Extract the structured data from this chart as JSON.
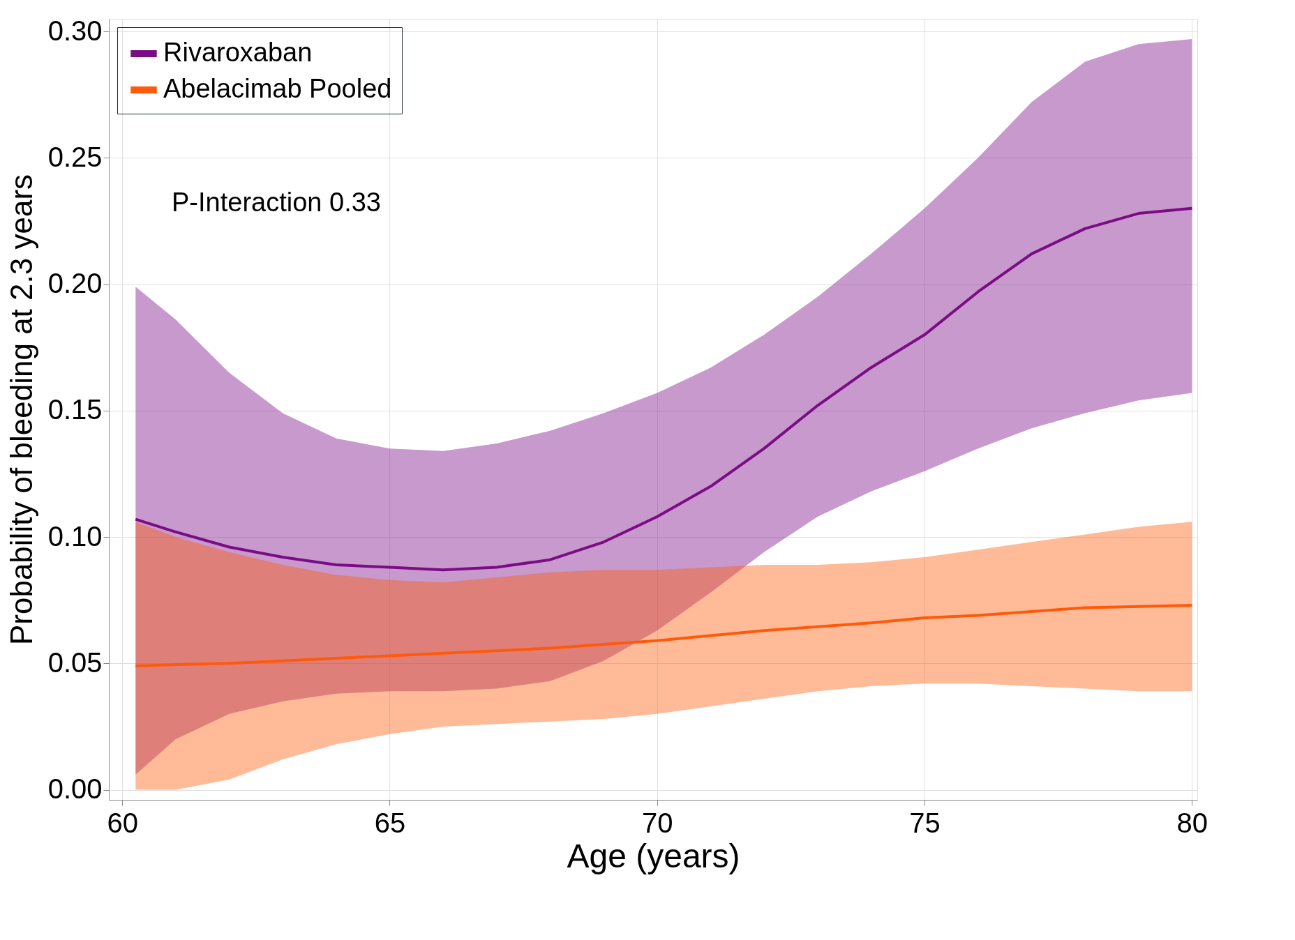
{
  "chart_data": {
    "type": "line",
    "xlabel": "Age (years)",
    "ylabel": "Probability of bleeding at 2.3 years",
    "annotations": [
      "P-Interaction 0.33"
    ],
    "x": [
      60.25,
      61,
      62,
      63,
      64,
      65,
      66,
      67,
      68,
      69,
      70,
      71,
      72,
      73,
      74,
      75,
      76,
      77,
      78,
      79,
      80
    ],
    "xlim": [
      59.75,
      80.1
    ],
    "xticks": [
      60,
      65,
      70,
      75,
      80
    ],
    "ylim": [
      -0.004,
      0.305
    ],
    "yticks": [
      {
        "value": 0,
        "label": "0.00"
      },
      {
        "value": 0.05,
        "label": "0.05"
      },
      {
        "value": 0.1,
        "label": "0.10"
      },
      {
        "value": 0.15,
        "label": "0.15"
      },
      {
        "value": 0.2,
        "label": "0.20"
      },
      {
        "value": 0.25,
        "label": "0.25"
      },
      {
        "value": 0.3,
        "label": "0.30"
      }
    ],
    "grid": true,
    "legend": "top left",
    "line_style": "solid",
    "marker": "none",
    "series": [
      {
        "name": "Rivaroxaban",
        "color": "#7b0c85",
        "values": [
          0.107,
          0.102,
          0.096,
          0.092,
          0.089,
          0.088,
          0.087,
          0.088,
          0.091,
          0.098,
          0.108,
          0.12,
          0.135,
          0.152,
          0.167,
          0.18,
          0.197,
          0.212,
          0.222,
          0.228,
          0.23
        ],
        "upper": [
          0.199,
          0.186,
          0.165,
          0.149,
          0.139,
          0.135,
          0.134,
          0.137,
          0.142,
          0.149,
          0.157,
          0.167,
          0.18,
          0.195,
          0.212,
          0.23,
          0.25,
          0.272,
          0.288,
          0.295,
          0.297
        ],
        "lower": [
          0.006,
          0.02,
          0.03,
          0.035,
          0.038,
          0.039,
          0.039,
          0.04,
          0.043,
          0.051,
          0.063,
          0.078,
          0.094,
          0.108,
          0.118,
          0.126,
          0.135,
          0.143,
          0.149,
          0.154,
          0.157
        ]
      },
      {
        "name": "Abelacimab Pooled",
        "color": "#ff5a0a",
        "values": [
          0.049,
          0.0495,
          0.05,
          0.051,
          0.052,
          0.053,
          0.054,
          0.055,
          0.056,
          0.0575,
          0.059,
          0.061,
          0.063,
          0.0645,
          0.066,
          0.068,
          0.069,
          0.0705,
          0.072,
          0.0725,
          0.073
        ],
        "upper": [
          0.106,
          0.1,
          0.094,
          0.089,
          0.085,
          0.083,
          0.082,
          0.084,
          0.086,
          0.087,
          0.087,
          0.088,
          0.089,
          0.089,
          0.09,
          0.092,
          0.095,
          0.098,
          0.101,
          0.104,
          0.106
        ],
        "lower": [
          0,
          0,
          0.004,
          0.012,
          0.018,
          0.022,
          0.025,
          0.026,
          0.027,
          0.028,
          0.03,
          0.033,
          0.036,
          0.039,
          0.041,
          0.042,
          0.042,
          0.041,
          0.04,
          0.039,
          0.039
        ]
      }
    ]
  }
}
